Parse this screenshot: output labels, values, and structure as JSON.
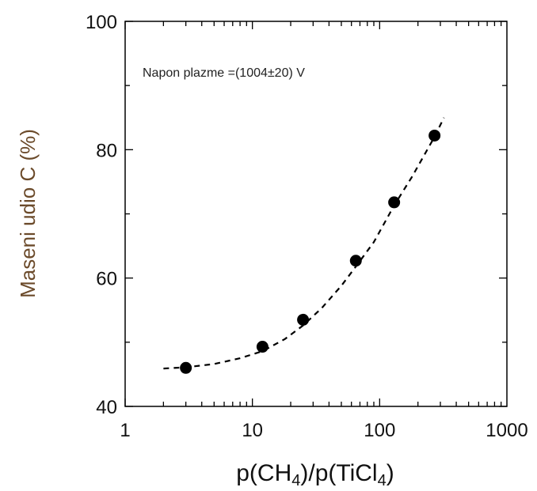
{
  "chart_data": {
    "type": "scatter",
    "title": "",
    "annotation": "Napon plazme =(1004±20) V",
    "xlabel_main": "p(CH",
    "xlabel_sub1": "4",
    "xlabel_mid": ")/p(TiCl",
    "xlabel_sub2": "4",
    "xlabel_end": ")",
    "ylabel": "Maseni udio C (%)",
    "xscale": "log",
    "xlim": [
      1,
      1000
    ],
    "ylim": [
      40,
      100
    ],
    "xticks": [
      1,
      10,
      100,
      1000
    ],
    "xtick_labels": [
      "1",
      "10",
      "100",
      "1000"
    ],
    "yticks": [
      40,
      60,
      80,
      100
    ],
    "ytick_labels": [
      "40",
      "60",
      "80",
      "100"
    ],
    "grid": false,
    "series": [
      {
        "x": [
          3,
          12,
          25,
          65,
          130,
          270
        ],
        "y": [
          46,
          49.3,
          53.5,
          62.7,
          71.8,
          82.2
        ],
        "marker": "filled-circle",
        "color": "#000000"
      }
    ],
    "fit_curve": {
      "style": "dashed",
      "color": "#000000",
      "x": [
        2,
        3,
        5,
        8,
        12,
        18,
        25,
        35,
        50,
        65,
        90,
        130,
        180,
        270,
        320
      ],
      "y": [
        45.9,
        46.1,
        46.6,
        47.5,
        48.6,
        50.5,
        52.6,
        55.3,
        58.8,
        61.8,
        65.6,
        71.3,
        75.8,
        82.0,
        85.0
      ]
    }
  }
}
